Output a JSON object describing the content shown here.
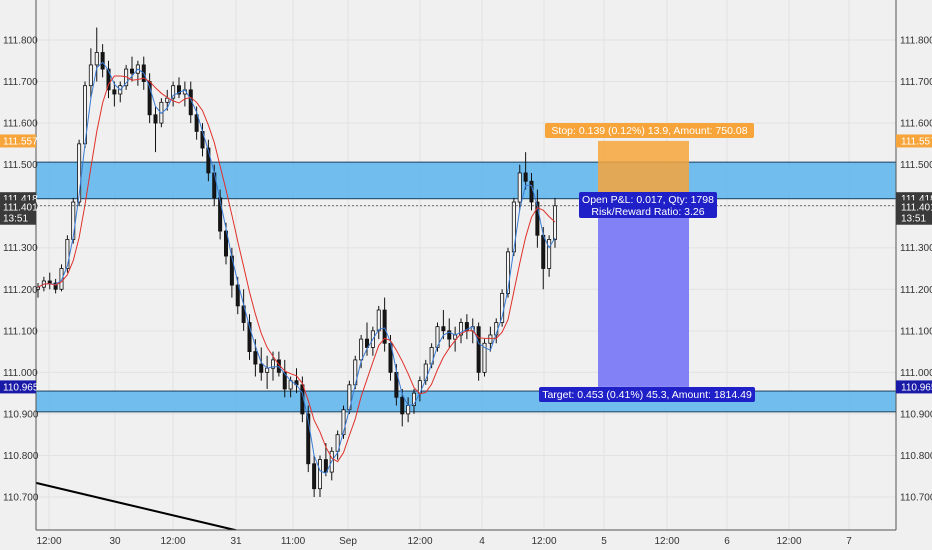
{
  "chart_data": {
    "type": "candlestick",
    "x_ticks": [
      "12:00",
      "30",
      "12:00",
      "31",
      "11:00",
      "Sep",
      "12:00",
      "4",
      "12:00",
      "5",
      "12:00",
      "6",
      "12:00",
      "7"
    ],
    "y_ticks": [
      "111.800",
      "111.700",
      "111.600",
      "111.500",
      "111.400",
      "111.300",
      "111.200",
      "111.100",
      "111.000",
      "110.900",
      "110.800",
      "110.700"
    ],
    "ylim": [
      110.62,
      111.85
    ],
    "price_tags": [
      {
        "label": "111.557",
        "value": 111.557,
        "color": "#f7a43a",
        "side": "both"
      },
      {
        "label": "111.418",
        "value": 111.418,
        "color": "#3a3a3a",
        "side": "both"
      },
      {
        "label": "111.401",
        "value": 111.401,
        "color": "#3a3a3a",
        "side": "both"
      },
      {
        "label": "13:51",
        "value": 111.371,
        "color": "#3a3a3a",
        "side": "both"
      },
      {
        "label": "110.965",
        "value": 110.965,
        "color": "#1a1aa8",
        "side": "both"
      }
    ],
    "zones": [
      {
        "from": 111.418,
        "to": 111.506,
        "color": "#5ab4ec"
      },
      {
        "from": 110.905,
        "to": 110.955,
        "color": "#5ab4ec"
      }
    ],
    "position": {
      "stop_label": "Stop: 0.139 (0.12%) 13.9, Amount: 750.08",
      "pnl_label": "Open P&L: 0.017, Qty: 1798",
      "rr_label": "Risk/Reward Ratio: 3.26",
      "target_label": "Target: 0.453 (0.41%) 45.3, Amount: 1814.49",
      "entry": 111.418,
      "stop": 111.557,
      "current": 111.401,
      "target": 110.965,
      "stop_color": "#f7a43a",
      "target_color": "#7b7bf5"
    },
    "trendline": {
      "start": 110.734,
      "end": 110.62
    },
    "candles_approx": [
      [
        111.2,
        111.215,
        111.18,
        111.205
      ],
      [
        111.205,
        111.23,
        111.195,
        111.22
      ],
      [
        111.22,
        111.24,
        111.2,
        111.215
      ],
      [
        111.215,
        111.225,
        111.19,
        111.2
      ],
      [
        111.2,
        111.26,
        111.195,
        111.25
      ],
      [
        111.25,
        111.33,
        111.24,
        111.32
      ],
      [
        111.32,
        111.42,
        111.31,
        111.41
      ],
      [
        111.41,
        111.56,
        111.4,
        111.55
      ],
      [
        111.55,
        111.7,
        111.54,
        111.69
      ],
      [
        111.69,
        111.78,
        111.66,
        111.74
      ],
      [
        111.74,
        111.83,
        111.7,
        111.77
      ],
      [
        111.77,
        111.79,
        111.71,
        111.73
      ],
      [
        111.73,
        111.75,
        111.66,
        111.68
      ],
      [
        111.68,
        111.7,
        111.64,
        111.67
      ],
      [
        111.67,
        111.7,
        111.65,
        111.69
      ],
      [
        111.69,
        111.74,
        111.68,
        111.73
      ],
      [
        111.73,
        111.76,
        111.7,
        111.72
      ],
      [
        111.72,
        111.75,
        111.69,
        111.74
      ],
      [
        111.74,
        111.76,
        111.68,
        111.7
      ],
      [
        111.7,
        111.72,
        111.6,
        111.62
      ],
      [
        111.62,
        111.64,
        111.53,
        111.6
      ],
      [
        111.6,
        111.66,
        111.59,
        111.65
      ],
      [
        111.65,
        111.68,
        111.63,
        111.66
      ],
      [
        111.66,
        111.7,
        111.64,
        111.69
      ],
      [
        111.69,
        111.71,
        111.66,
        111.67
      ],
      [
        111.67,
        111.7,
        111.64,
        111.68
      ],
      [
        111.68,
        111.7,
        111.6,
        111.62
      ],
      [
        111.62,
        111.64,
        111.56,
        111.58
      ],
      [
        111.58,
        111.6,
        111.52,
        111.54
      ],
      [
        111.54,
        111.56,
        111.46,
        111.48
      ],
      [
        111.48,
        111.5,
        111.4,
        111.42
      ],
      [
        111.42,
        111.44,
        111.32,
        111.34
      ],
      [
        111.34,
        111.36,
        111.26,
        111.28
      ],
      [
        111.28,
        111.3,
        111.18,
        111.21
      ],
      [
        111.21,
        111.23,
        111.14,
        111.16
      ],
      [
        111.16,
        111.2,
        111.1,
        111.12
      ],
      [
        111.12,
        111.14,
        111.03,
        111.05
      ],
      [
        111.05,
        111.08,
        110.99,
        111.02
      ],
      [
        111.02,
        111.06,
        110.98,
        111.0
      ],
      [
        111.0,
        111.04,
        110.96,
        111.01
      ],
      [
        111.01,
        111.05,
        110.98,
        111.03
      ],
      [
        111.03,
        111.05,
        110.99,
        111.0
      ],
      [
        111.0,
        111.03,
        110.94,
        110.96
      ],
      [
        110.96,
        110.99,
        110.94,
        110.98
      ],
      [
        110.98,
        111.01,
        110.95,
        110.97
      ],
      [
        110.97,
        110.99,
        110.88,
        110.9
      ],
      [
        110.9,
        110.92,
        110.76,
        110.78
      ],
      [
        110.78,
        110.8,
        110.7,
        110.72
      ],
      [
        110.72,
        110.8,
        110.7,
        110.79
      ],
      [
        110.79,
        110.83,
        110.75,
        110.76
      ],
      [
        110.76,
        110.82,
        110.74,
        110.81
      ],
      [
        110.81,
        110.86,
        110.79,
        110.85
      ],
      [
        110.85,
        110.92,
        110.84,
        110.91
      ],
      [
        110.91,
        110.98,
        110.9,
        110.97
      ],
      [
        110.97,
        111.04,
        110.96,
        111.03
      ],
      [
        111.03,
        111.09,
        111.01,
        111.08
      ],
      [
        111.08,
        111.12,
        111.04,
        111.06
      ],
      [
        111.06,
        111.11,
        111.04,
        111.1
      ],
      [
        111.1,
        111.16,
        111.08,
        111.15
      ],
      [
        111.15,
        111.18,
        111.05,
        111.07
      ],
      [
        111.07,
        111.09,
        110.98,
        111.0
      ],
      [
        111.0,
        111.02,
        110.92,
        110.94
      ],
      [
        110.94,
        110.96,
        110.87,
        110.9
      ],
      [
        110.9,
        110.94,
        110.88,
        110.92
      ],
      [
        110.92,
        110.96,
        110.9,
        110.95
      ],
      [
        110.95,
        110.99,
        110.93,
        110.98
      ],
      [
        110.98,
        111.03,
        110.97,
        111.02
      ],
      [
        111.02,
        111.07,
        111.01,
        111.06
      ],
      [
        111.06,
        111.12,
        111.05,
        111.11
      ],
      [
        111.11,
        111.15,
        111.08,
        111.1
      ],
      [
        111.1,
        111.13,
        111.06,
        111.08
      ],
      [
        111.08,
        111.11,
        111.05,
        111.09
      ],
      [
        111.09,
        111.13,
        111.07,
        111.12
      ],
      [
        111.12,
        111.14,
        111.08,
        111.1
      ],
      [
        111.1,
        111.13,
        111.07,
        111.11
      ],
      [
        111.11,
        111.12,
        110.98,
        111.0
      ],
      [
        111.0,
        111.08,
        110.99,
        111.07
      ],
      [
        111.07,
        111.11,
        111.05,
        111.09
      ],
      [
        111.09,
        111.13,
        111.07,
        111.12
      ],
      [
        111.12,
        111.2,
        111.11,
        111.19
      ],
      [
        111.19,
        111.3,
        111.18,
        111.29
      ],
      [
        111.29,
        111.42,
        111.28,
        111.41
      ],
      [
        111.41,
        111.5,
        111.39,
        111.48
      ],
      [
        111.48,
        111.53,
        111.44,
        111.46
      ],
      [
        111.46,
        111.48,
        111.39,
        111.41
      ],
      [
        111.41,
        111.44,
        111.3,
        111.33
      ],
      [
        111.33,
        111.35,
        111.2,
        111.25
      ],
      [
        111.25,
        111.33,
        111.23,
        111.32
      ],
      [
        111.32,
        111.42,
        111.3,
        111.401
      ]
    ]
  }
}
